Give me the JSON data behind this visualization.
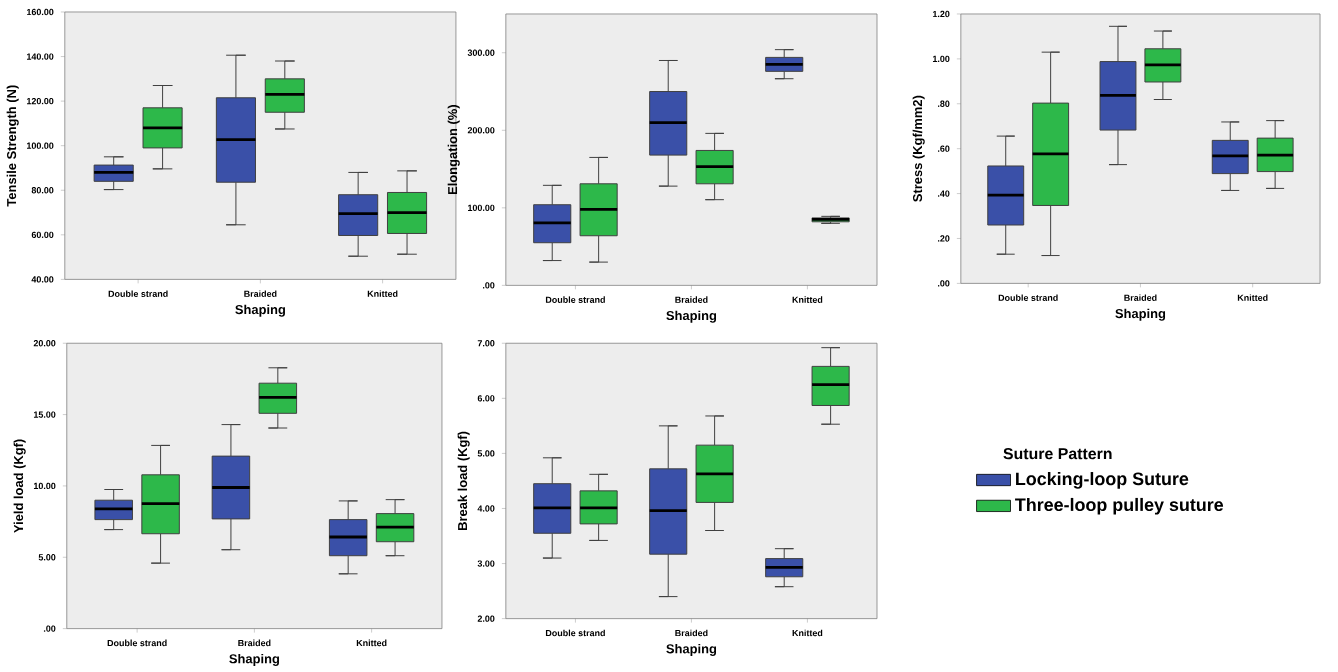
{
  "chart_data": [
    {
      "type": "box",
      "xlabel": "Shaping",
      "ylabel": "Tensile Strength (N)",
      "categories": [
        "Double strand",
        "Braided",
        "Knitted"
      ],
      "ylim": [
        40,
        160
      ],
      "yticks": [
        {
          "value": 40,
          "label": "40.00"
        },
        {
          "value": 60,
          "label": "60.00"
        },
        {
          "value": 80,
          "label": "80.00"
        },
        {
          "value": 100,
          "label": "100.00"
        },
        {
          "value": 120,
          "label": "120.00"
        },
        {
          "value": 140,
          "label": "140.00"
        },
        {
          "value": 160,
          "label": "160.00"
        }
      ],
      "series": [
        {
          "color": "#3a50a8",
          "boxes": [
            {
              "low": 80.3,
              "q1": 84,
              "median": 88,
              "q3": 91.3,
              "high": 95
            },
            {
              "low": 64.5,
              "q1": 83.6,
              "median": 102.7,
              "q3": 121.5,
              "high": 140.6
            },
            {
              "low": 50.4,
              "q1": 59.7,
              "median": 69.5,
              "q3": 78,
              "high": 88
            }
          ]
        },
        {
          "color": "#2db84a",
          "boxes": [
            {
              "low": 89.6,
              "q1": 99,
              "median": 108,
              "q3": 117,
              "high": 127
            },
            {
              "low": 107.5,
              "q1": 115,
              "median": 123,
              "q3": 130,
              "high": 138
            },
            {
              "low": 51.3,
              "q1": 60.6,
              "median": 70,
              "q3": 79,
              "high": 88.7
            }
          ]
        }
      ]
    },
    {
      "type": "box",
      "xlabel": "Shaping",
      "ylabel": "Elongation (%)",
      "categories": [
        "Double strand",
        "Braided",
        "Knitted"
      ],
      "ylim": [
        0,
        350
      ],
      "yticks": [
        {
          "value": 0,
          "label": ".00"
        },
        {
          "value": 100,
          "label": "100.00"
        },
        {
          "value": 200,
          "label": "200.00"
        },
        {
          "value": 300,
          "label": "300.00"
        }
      ],
      "series": [
        {
          "color": "#3a50a8",
          "boxes": [
            {
              "low": 32,
              "q1": 55,
              "median": 80.5,
              "q3": 104,
              "high": 129
            },
            {
              "low": 128,
              "q1": 168,
              "median": 210,
              "q3": 250,
              "high": 290
            },
            {
              "low": 266.5,
              "q1": 276,
              "median": 285,
              "q3": 294,
              "high": 304
            }
          ]
        },
        {
          "color": "#2db84a",
          "boxes": [
            {
              "low": 30,
              "q1": 64,
              "median": 98,
              "q3": 131,
              "high": 165
            },
            {
              "low": 110.5,
              "q1": 131,
              "median": 153,
              "q3": 174,
              "high": 196
            },
            {
              "low": 80,
              "q1": 82,
              "median": 85,
              "q3": 87,
              "high": 89
            }
          ]
        }
      ]
    },
    {
      "type": "box",
      "xlabel": "Shaping",
      "ylabel": "Stress (Kgf/mm2)",
      "categories": [
        "Double strand",
        "Braided",
        "Knitted"
      ],
      "ylim": [
        0,
        1.2
      ],
      "yticks": [
        {
          "value": 0,
          "label": ".00"
        },
        {
          "value": 0.2,
          "label": ".20"
        },
        {
          "value": 0.4,
          "label": ".40"
        },
        {
          "value": 0.6,
          "label": ".60"
        },
        {
          "value": 0.8,
          "label": ".80"
        },
        {
          "value": 1.0,
          "label": "1.00"
        },
        {
          "value": 1.2,
          "label": "1.20"
        }
      ],
      "series": [
        {
          "color": "#3a50a8",
          "boxes": [
            {
              "low": 0.13,
              "q1": 0.26,
              "median": 0.393,
              "q3": 0.523,
              "high": 0.656
            },
            {
              "low": 0.529,
              "q1": 0.683,
              "median": 0.837,
              "q3": 0.988,
              "high": 1.145
            },
            {
              "low": 0.414,
              "q1": 0.489,
              "median": 0.568,
              "q3": 0.637,
              "high": 0.719
            }
          ]
        },
        {
          "color": "#2db84a",
          "boxes": [
            {
              "low": 0.124,
              "q1": 0.347,
              "median": 0.577,
              "q3": 0.803,
              "high": 1.03
            },
            {
              "low": 0.819,
              "q1": 0.897,
              "median": 0.973,
              "q3": 1.045,
              "high": 1.124
            },
            {
              "low": 0.423,
              "q1": 0.498,
              "median": 0.571,
              "q3": 0.647,
              "high": 0.725
            }
          ]
        }
      ]
    },
    {
      "type": "box",
      "xlabel": "Shaping",
      "ylabel": "Yield load (Kgf)",
      "categories": [
        "Double strand",
        "Braided",
        "Knitted"
      ],
      "ylim": [
        0,
        20
      ],
      "yticks": [
        {
          "value": 0,
          "label": ".00"
        },
        {
          "value": 5,
          "label": "5.00"
        },
        {
          "value": 10,
          "label": "10.00"
        },
        {
          "value": 15,
          "label": "15.00"
        },
        {
          "value": 20,
          "label": "20.00"
        }
      ],
      "series": [
        {
          "color": "#3a50a8",
          "boxes": [
            {
              "low": 6.94,
              "q1": 7.64,
              "median": 8.39,
              "q3": 9.0,
              "high": 9.75
            },
            {
              "low": 5.53,
              "q1": 7.69,
              "median": 9.89,
              "q3": 12.09,
              "high": 14.3
            },
            {
              "low": 3.84,
              "q1": 5.11,
              "median": 6.42,
              "q3": 7.64,
              "high": 8.95
            }
          ]
        },
        {
          "color": "#2db84a",
          "boxes": [
            {
              "low": 4.59,
              "q1": 6.65,
              "median": 8.76,
              "q3": 10.78,
              "high": 12.84
            },
            {
              "low": 14.06,
              "q1": 15.09,
              "median": 16.2,
              "q3": 17.2,
              "high": 18.28
            },
            {
              "low": 5.11,
              "q1": 6.09,
              "median": 7.12,
              "q3": 8.06,
              "high": 9.04
            }
          ]
        }
      ]
    },
    {
      "type": "box",
      "xlabel": "Shaping",
      "ylabel": "Break load (Kgf)",
      "categories": [
        "Double strand",
        "Braided",
        "Knitted"
      ],
      "ylim": [
        2,
        7
      ],
      "yticks": [
        {
          "value": 2,
          "label": "2.00"
        },
        {
          "value": 3,
          "label": "3.00"
        },
        {
          "value": 4,
          "label": "4.00"
        },
        {
          "value": 5,
          "label": "5.00"
        },
        {
          "value": 6,
          "label": "6.00"
        },
        {
          "value": 7,
          "label": "7.00"
        }
      ],
      "legend": "right",
      "legend_title": "Suture Pattern",
      "series": [
        {
          "name": "Locking-loop Suture",
          "color": "#3a50a8",
          "boxes": [
            {
              "low": 3.1,
              "q1": 3.55,
              "median": 4.01,
              "q3": 4.45,
              "high": 4.92
            },
            {
              "low": 2.4,
              "q1": 3.17,
              "median": 3.96,
              "q3": 4.72,
              "high": 5.5
            },
            {
              "low": 2.58,
              "q1": 2.76,
              "median": 2.93,
              "q3": 3.09,
              "high": 3.27
            }
          ]
        },
        {
          "name": "Three-loop pulley suture",
          "color": "#2db84a",
          "boxes": [
            {
              "low": 3.42,
              "q1": 3.72,
              "median": 4.01,
              "q3": 4.32,
              "high": 4.62
            },
            {
              "low": 3.6,
              "q1": 4.11,
              "median": 4.63,
              "q3": 5.15,
              "high": 5.68
            },
            {
              "low": 5.53,
              "q1": 5.87,
              "median": 6.25,
              "q3": 6.58,
              "high": 6.92
            }
          ]
        }
      ]
    }
  ]
}
